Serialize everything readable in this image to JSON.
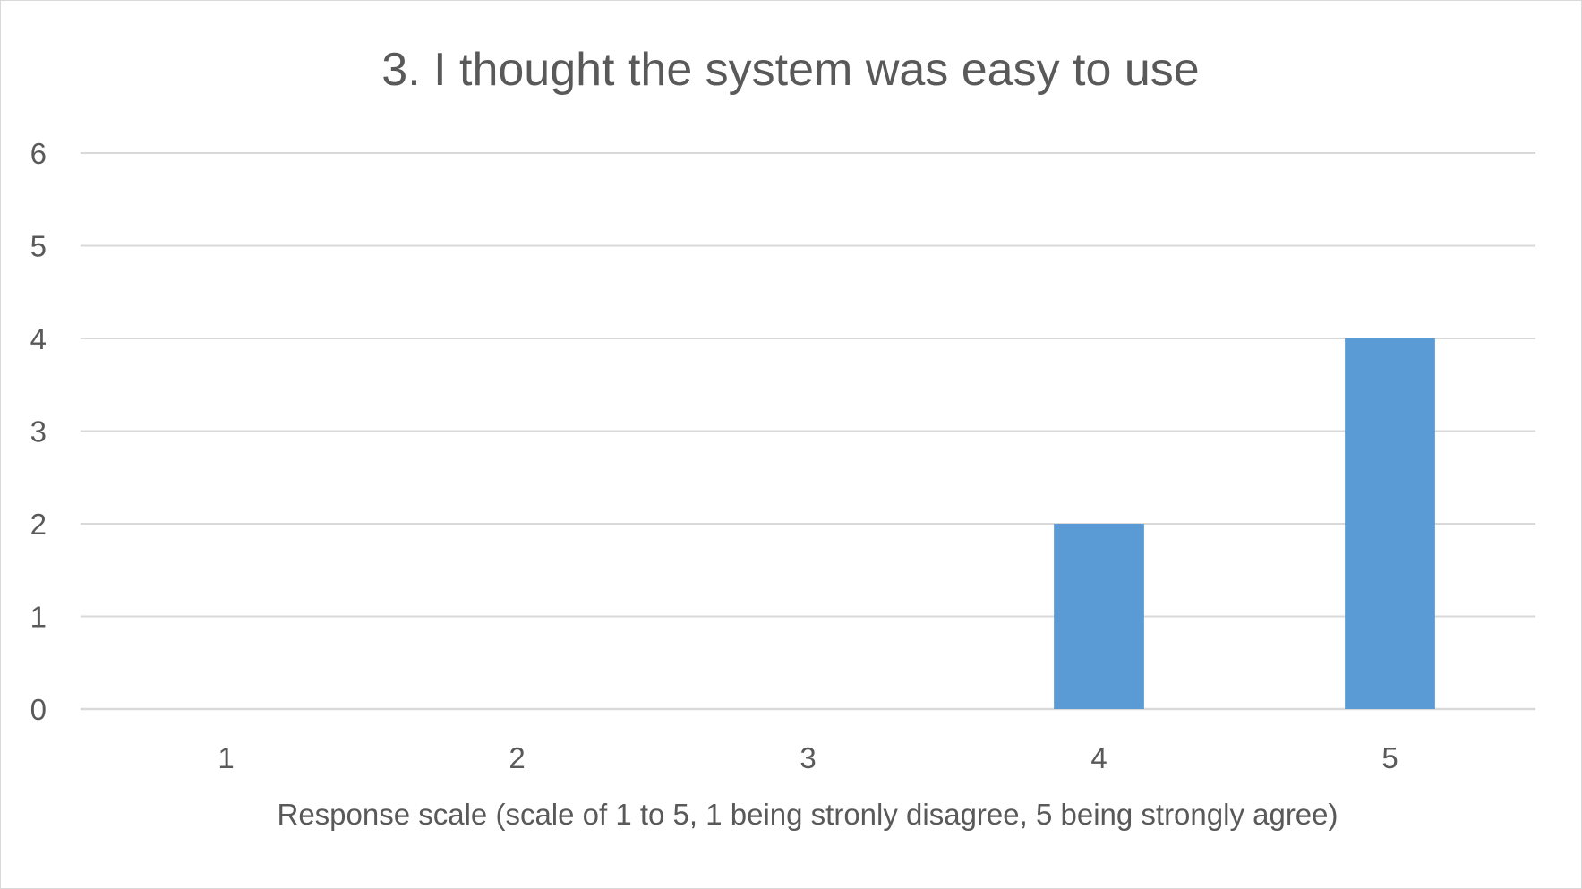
{
  "chart_data": {
    "type": "bar",
    "title": "3. I thought the system was easy to use",
    "xlabel": "Response scale (scale of 1 to 5, 1 being stronly disagree, 5 being strongly agree)",
    "ylabel": "",
    "categories": [
      "1",
      "2",
      "3",
      "4",
      "5"
    ],
    "values": [
      0,
      0,
      0,
      2,
      4
    ],
    "ylim": [
      0,
      6
    ],
    "yticks": [
      "0",
      "1",
      "2",
      "3",
      "4",
      "5",
      "6"
    ],
    "grid": true,
    "legend": "none",
    "colors": {
      "bar": "#5b9bd5",
      "grid": "#d9d9d9",
      "text": "#595959"
    }
  }
}
